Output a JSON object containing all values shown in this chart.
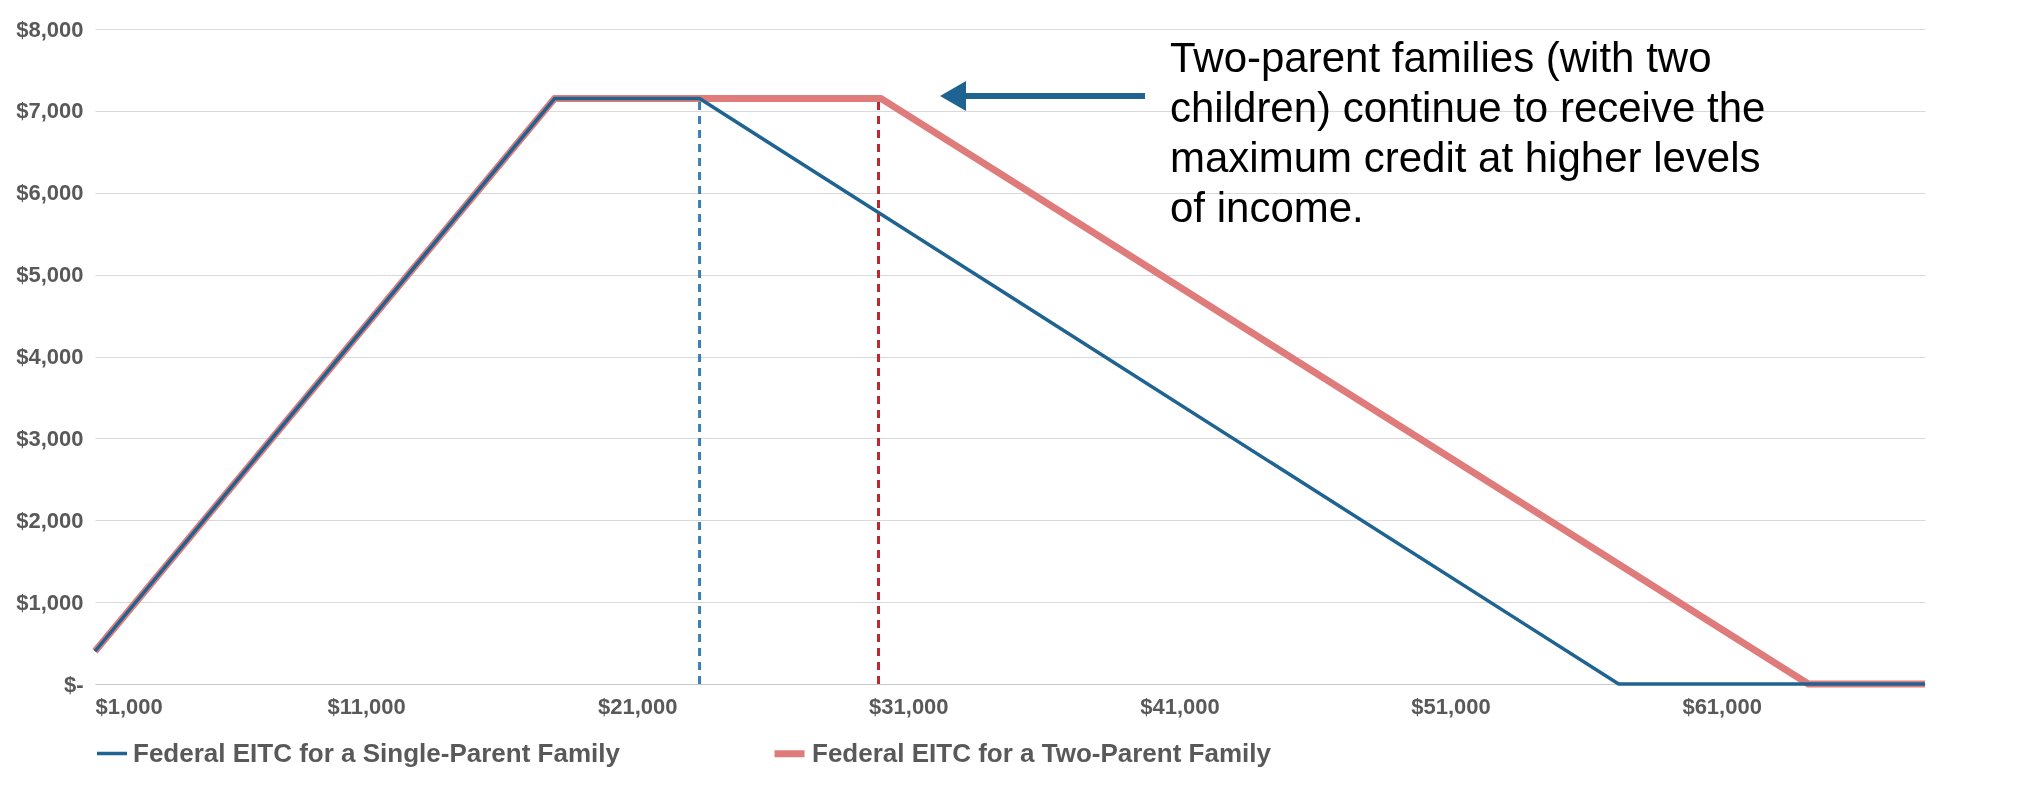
{
  "chart_data": {
    "type": "line",
    "series": [
      {
        "name": "Federal EITC for a Single-Parent Family",
        "color": "#1f6391",
        "x": [
          1000,
          17950,
          23300,
          57200,
          58000,
          68500
        ],
        "values": [
          400,
          7150,
          7150,
          0,
          0,
          0
        ]
      },
      {
        "name": "Federal EITC for a Two-Parent Family",
        "color": "#e07b7b",
        "x": [
          1000,
          17950,
          30000,
          64200,
          65000,
          68500
        ],
        "values": [
          400,
          7150,
          7150,
          0,
          0,
          0
        ]
      }
    ],
    "xlim": [
      1000,
      68500
    ],
    "xticks": [
      {
        "value": 1000,
        "label": "$1,000"
      },
      {
        "value": 11000,
        "label": "$11,000"
      },
      {
        "value": 21000,
        "label": "$21,000"
      },
      {
        "value": 31000,
        "label": "$31,000"
      },
      {
        "value": 41000,
        "label": "$41,000"
      },
      {
        "value": 51000,
        "label": "$51,000"
      },
      {
        "value": 61000,
        "label": "$61,000"
      }
    ],
    "ylim": [
      0,
      8000
    ],
    "yticks": [
      {
        "value": 0,
        "label": "$-"
      },
      {
        "value": 1000,
        "label": "$1,000"
      },
      {
        "value": 2000,
        "label": "$2,000"
      },
      {
        "value": 3000,
        "label": "$3,000"
      },
      {
        "value": 4000,
        "label": "$4,000"
      },
      {
        "value": 5000,
        "label": "$5,000"
      },
      {
        "value": 6000,
        "label": "$6,000"
      },
      {
        "value": 7000,
        "label": "$7,000"
      },
      {
        "value": 8000,
        "label": "$8,000"
      }
    ],
    "ref_lines": [
      {
        "axis": "x",
        "value": 23300,
        "color": "#3a7fb0",
        "line_style": "dashed"
      },
      {
        "axis": "x",
        "value": 29900,
        "color": "#c0262d",
        "line_style": "dashed"
      }
    ],
    "annotations": [
      "Two-parent families (with two children) continue to receive the maximum credit at higher levels of income."
    ],
    "grid": "y",
    "legend": "bottom",
    "line_style": "solid",
    "marker": "none"
  }
}
